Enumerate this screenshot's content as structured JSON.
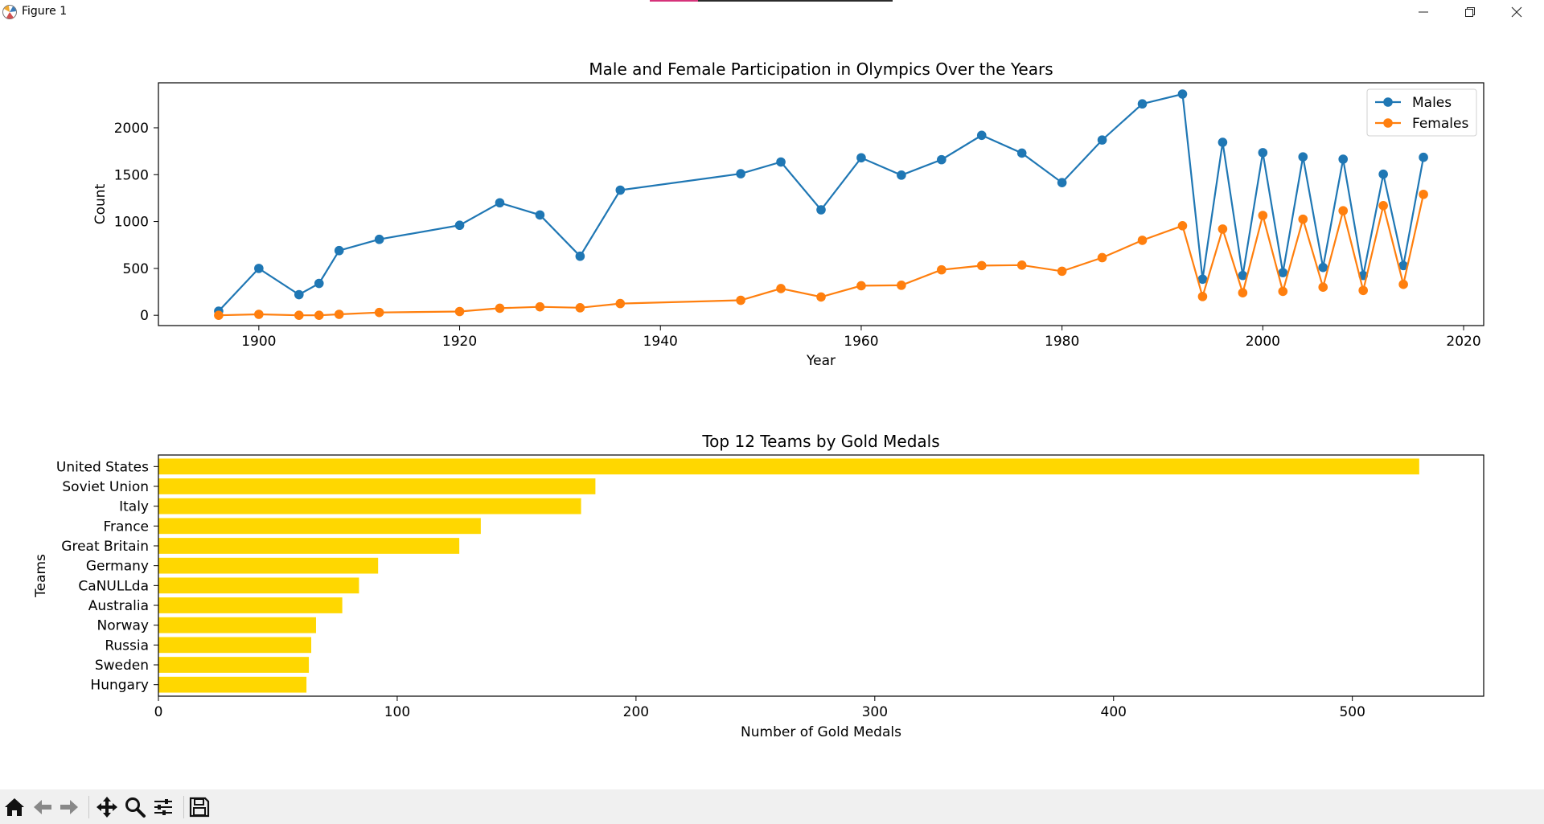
{
  "window": {
    "title": "Figure 1"
  },
  "colors": {
    "males": "#1f77b4",
    "females": "#ff7f0e",
    "bars": "#ffd700"
  },
  "toolbar": {
    "buttons": [
      "home-icon",
      "back-arrow-icon",
      "forward-arrow-icon",
      "pan-icon",
      "zoom-icon",
      "configure-subplots-icon",
      "save-icon"
    ]
  },
  "chart_data": [
    {
      "type": "line",
      "title": "Male and Female Participation in Olympics Over the Years",
      "xlabel": "Year",
      "ylabel": "Count",
      "xlim": [
        1890,
        2022
      ],
      "ylim": [
        -110,
        2480
      ],
      "xticks": [
        1900,
        1920,
        1940,
        1960,
        1980,
        2000,
        2020
      ],
      "yticks": [
        0,
        500,
        1000,
        1500,
        2000
      ],
      "legend": "top-right",
      "grid": false,
      "x": [
        1896,
        1900,
        1904,
        1906,
        1908,
        1912,
        1920,
        1924,
        1928,
        1932,
        1936,
        1948,
        1952,
        1956,
        1960,
        1964,
        1968,
        1972,
        1976,
        1980,
        1984,
        1988,
        1992,
        1994,
        1996,
        1998,
        2000,
        2002,
        2004,
        2006,
        2008,
        2010,
        2012,
        2014,
        2016
      ],
      "series": [
        {
          "name": "Males",
          "values": [
            44,
            500,
            220,
            340,
            690,
            810,
            960,
            1200,
            1070,
            630,
            1335,
            1510,
            1635,
            1125,
            1680,
            1495,
            1660,
            1920,
            1730,
            1415,
            1870,
            2255,
            2360,
            385,
            1845,
            425,
            1735,
            455,
            1690,
            510,
            1665,
            425,
            1505,
            530,
            1685
          ]
        },
        {
          "name": "Females",
          "values": [
            0,
            10,
            0,
            0,
            10,
            30,
            40,
            75,
            90,
            80,
            125,
            160,
            285,
            195,
            315,
            320,
            485,
            530,
            535,
            470,
            615,
            800,
            955,
            200,
            920,
            240,
            1065,
            255,
            1025,
            300,
            1115,
            265,
            1170,
            330,
            1290
          ]
        }
      ]
    },
    {
      "type": "bar",
      "orientation": "horizontal",
      "title": "Top 12 Teams by Gold Medals",
      "xlabel": "Number of Gold Medals",
      "ylabel": "Teams",
      "xlim": [
        0,
        555
      ],
      "xticks": [
        0,
        100,
        200,
        300,
        400,
        500
      ],
      "grid": false,
      "categories": [
        "United States",
        "Soviet Union",
        "Italy",
        "France",
        "Great Britain",
        "Germany",
        "CaNULLda",
        "Australia",
        "Norway",
        "Russia",
        "Sweden",
        "Hungary"
      ],
      "values": [
        528,
        183,
        177,
        135,
        126,
        92,
        84,
        77,
        66,
        64,
        63,
        62
      ]
    }
  ]
}
